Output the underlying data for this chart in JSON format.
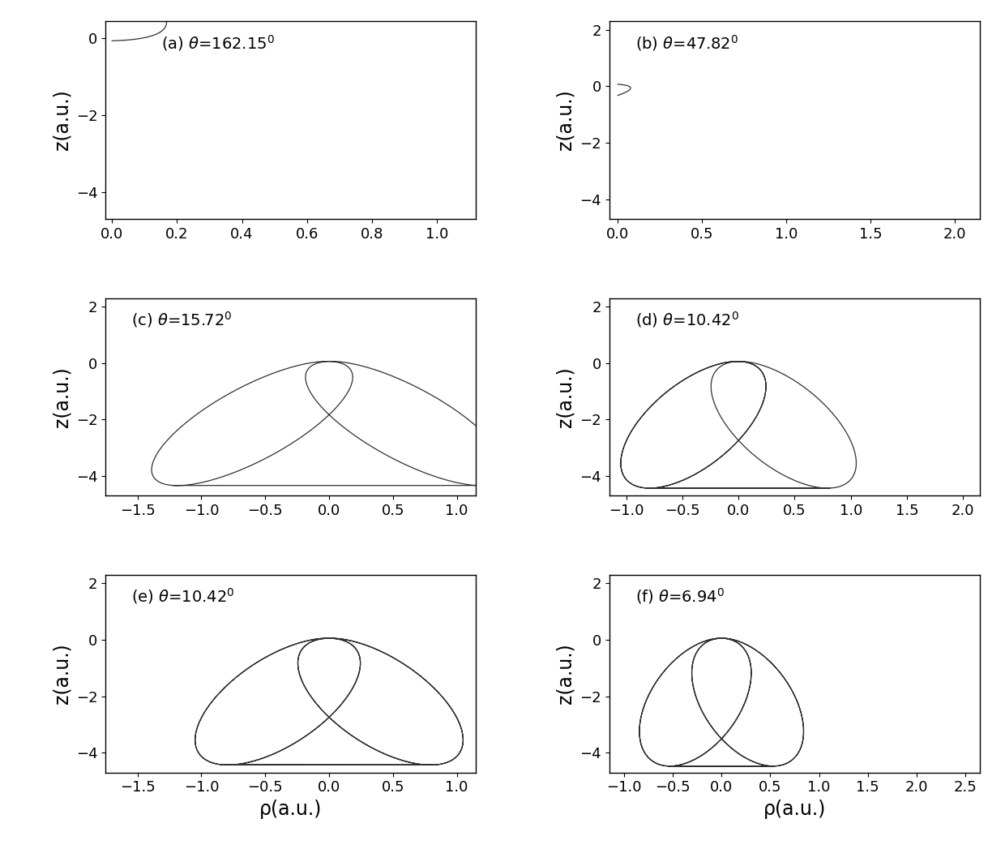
{
  "subplots": [
    {
      "label": "(a)",
      "theta_deg": 162.15,
      "xlim": [
        -0.02,
        1.12
      ],
      "ylim": [
        -4.7,
        0.45
      ],
      "xticks": [
        0.0,
        0.2,
        0.4,
        0.6,
        0.8,
        1.0
      ],
      "yticks": [
        0,
        -2,
        -4
      ],
      "n_orbits": 1
    },
    {
      "label": "(b)",
      "theta_deg": 47.82,
      "xlim": [
        -0.05,
        2.15
      ],
      "ylim": [
        -4.7,
        2.3
      ],
      "xticks": [
        0.0,
        0.5,
        1.0,
        1.5,
        2.0
      ],
      "yticks": [
        2,
        0,
        -2,
        -4
      ],
      "n_orbits": 1
    },
    {
      "label": "(c)",
      "theta_deg": 15.72,
      "xlim": [
        -1.75,
        1.15
      ],
      "ylim": [
        -4.7,
        2.3
      ],
      "xticks": [
        -1.5,
        -1.0,
        -0.5,
        0.0,
        0.5,
        1.0
      ],
      "yticks": [
        2,
        0,
        -2,
        -4
      ],
      "n_orbits": 2
    },
    {
      "label": "(d)",
      "theta_deg": 10.42,
      "xlim": [
        -1.15,
        2.15
      ],
      "ylim": [
        -4.7,
        2.3
      ],
      "xticks": [
        -1.0,
        -0.5,
        0.0,
        0.5,
        1.0,
        1.5,
        2.0
      ],
      "yticks": [
        2,
        0,
        -2,
        -4
      ],
      "n_orbits": 3
    },
    {
      "label": "(e)",
      "theta_deg": 10.42,
      "xlim": [
        -1.75,
        1.15
      ],
      "ylim": [
        -4.7,
        2.3
      ],
      "xticks": [
        -1.5,
        -1.0,
        -0.5,
        0.0,
        0.5,
        1.0
      ],
      "yticks": [
        2,
        0,
        -2,
        -4
      ],
      "n_orbits": 4
    },
    {
      "label": "(f)",
      "theta_deg": 6.94,
      "xlim": [
        -1.15,
        2.65
      ],
      "ylim": [
        -4.7,
        2.3
      ],
      "xticks": [
        -1.0,
        -0.5,
        0.0,
        0.5,
        1.0,
        1.5,
        2.0,
        2.5
      ],
      "yticks": [
        2,
        0,
        -2,
        -4
      ],
      "n_orbits": 4
    }
  ],
  "xlabel": "ρ(a.u.)",
  "ylabel": "z(a.u.)",
  "line_color": "#303030",
  "line_width": 0.9,
  "font_size_label": 17,
  "font_size_tick": 13,
  "font_size_annot": 14,
  "E_n": 5,
  "e_ecc": 0.975
}
